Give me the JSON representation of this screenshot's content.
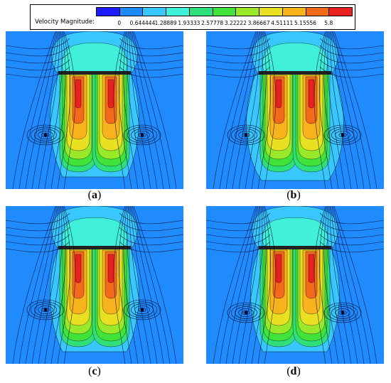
{
  "legend": {
    "title": "Velocity Magnitude:",
    "levels": [
      "0",
      "0.644444",
      "1.28889",
      "1.93333",
      "2.57778",
      "3.22222",
      "3.86667",
      "4.51111",
      "5.15556",
      "5.8"
    ],
    "colors": [
      "#1c1cff",
      "#1f8bff",
      "#38c8ff",
      "#40f0d8",
      "#2fe07a",
      "#3fe33a",
      "#9ae82a",
      "#e8e020",
      "#f7b21c",
      "#f26a1a",
      "#e8201e"
    ]
  },
  "panels": [
    {
      "id": "a",
      "caption_open": "(",
      "caption_letter": "a",
      "caption_close": ")"
    },
    {
      "id": "b",
      "caption_open": "(",
      "caption_letter": "b",
      "caption_close": ")"
    },
    {
      "id": "c",
      "caption_open": "(",
      "caption_letter": "c",
      "caption_close": ")"
    },
    {
      "id": "d",
      "caption_open": "(",
      "caption_letter": "d",
      "caption_close": ")"
    }
  ]
}
